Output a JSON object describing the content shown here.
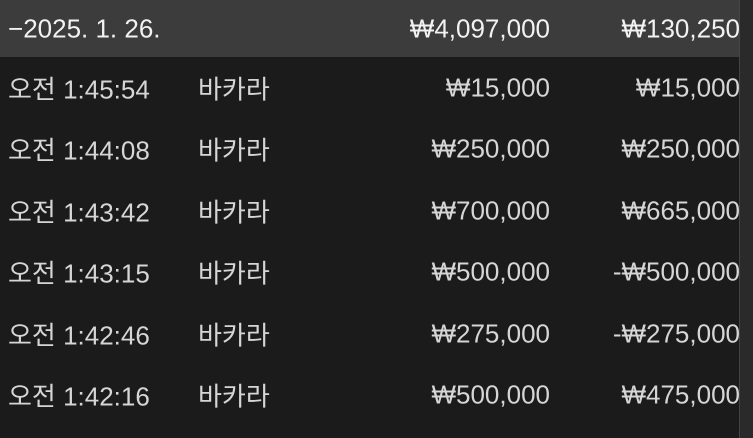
{
  "group": {
    "collapse_symbol": "−",
    "date": "2025. 1. 26.",
    "total_amount": "₩4,097,000",
    "total_result": "₩130,250"
  },
  "rows": [
    {
      "time": "오전 1:45:54",
      "game": "바카라",
      "amount": "₩15,000",
      "result": "₩15,000"
    },
    {
      "time": "오전 1:44:08",
      "game": "바카라",
      "amount": "₩250,000",
      "result": "₩250,000"
    },
    {
      "time": "오전 1:43:42",
      "game": "바카라",
      "amount": "₩700,000",
      "result": "₩665,000"
    },
    {
      "time": "오전 1:43:15",
      "game": "바카라",
      "amount": "₩500,000",
      "result": "-₩500,000"
    },
    {
      "time": "오전 1:42:46",
      "game": "바카라",
      "amount": "₩275,000",
      "result": "-₩275,000"
    },
    {
      "time": "오전 1:42:16",
      "game": "바카라",
      "amount": "₩500,000",
      "result": "₩475,000"
    }
  ]
}
